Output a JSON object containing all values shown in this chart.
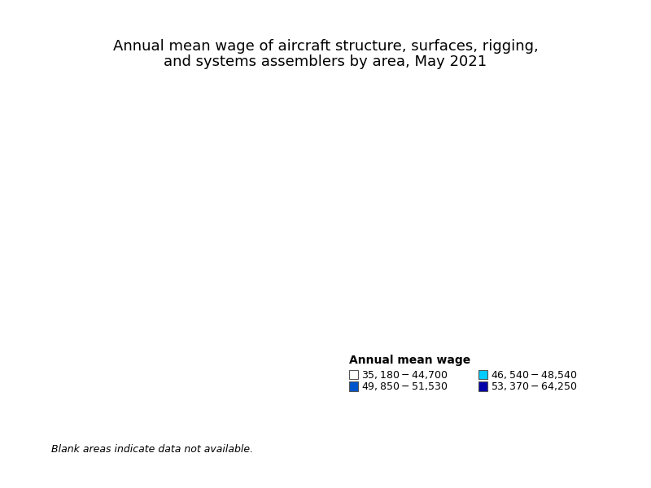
{
  "title_line1": "Annual mean wage of aircraft structure, surfaces, rigging,",
  "title_line2": "and systems assemblers by area, May 2021",
  "legend_title": "Annual mean wage",
  "legend_items": [
    {
      "label": "$35,180 - $44,700",
      "color": "#ffffff",
      "edgecolor": "#aaaaaa"
    },
    {
      "label": "$46,540 - $48,540",
      "color": "#00ccff",
      "edgecolor": "#aaaaaa"
    },
    {
      "label": "$49,850 - $51,530",
      "color": "#0055cc",
      "edgecolor": "#aaaaaa"
    },
    {
      "label": "$53,370 - $64,250",
      "color": "#0000aa",
      "edgecolor": "#aaaaaa"
    }
  ],
  "blank_note": "Blank areas indicate data not available.",
  "background_color": "#ffffff",
  "map_default_color": "#f0f0f0",
  "map_border_color": "#888888",
  "title_fontsize": 13,
  "legend_title_fontsize": 10,
  "legend_fontsize": 9
}
